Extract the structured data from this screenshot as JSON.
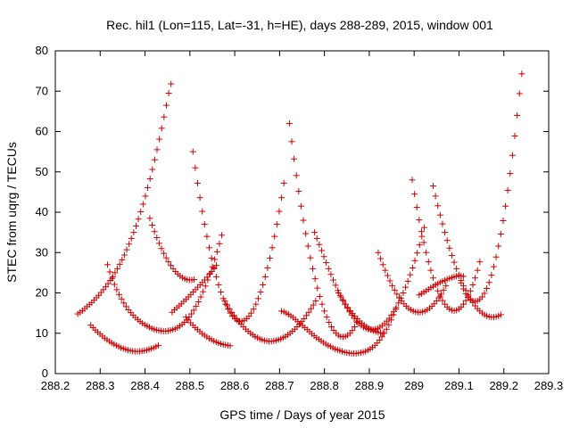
{
  "chart_data": {
    "type": "scatter",
    "title": "Rec. hil1 (Lon=115, Lat=-31, h=HE), days 288-289, 2015, window 001",
    "xlabel": "GPS time / Days of year 2015",
    "ylabel": "STEC from uqrg / TECUs",
    "xlim": [
      288.2,
      289.3
    ],
    "ylim": [
      0,
      80
    ],
    "x_ticks": [
      "288.2",
      "288.3",
      "288.4",
      "288.5",
      "288.6",
      "288.7",
      "288.8",
      "288.9",
      "289",
      "289.1",
      "289.2",
      "289.3"
    ],
    "y_ticks": [
      "0",
      "10",
      "20",
      "30",
      "40",
      "50",
      "60",
      "70",
      "80"
    ],
    "marker": "+",
    "color": "#cc0000",
    "grid": false,
    "legend": "none",
    "x_range": [
      288.25,
      289.24
    ],
    "x_step": 0.0052,
    "series": [
      {
        "values": [
          [
            14.8,
            15.2,
            15.6,
            16.1,
            16.6,
            17.1,
            17.6,
            18.2,
            18.8,
            19.4,
            20.1,
            20.8,
            21.5,
            22.3,
            23.1,
            24.0,
            25.0,
            26.0,
            27.1,
            28.2,
            29.4,
            30.7,
            32.1,
            33.5,
            35.0,
            36.6,
            38.3,
            40.1,
            42.0,
            44.0,
            46.1,
            48.3,
            50.6,
            53.0,
            55.5,
            58.1,
            60.8,
            63.6,
            66.5,
            69.5,
            71.8
          ],
          [
            15.5,
            15.3,
            15.0,
            14.7,
            14.3,
            13.9,
            13.4,
            12.9,
            12.4,
            11.9,
            11.4,
            10.9,
            10.4,
            9.9,
            9.4,
            8.9,
            8.5,
            8.1,
            7.7,
            7.3,
            7.0,
            6.7,
            6.4,
            6.1,
            5.9,
            5.7,
            5.5,
            5.3,
            5.2,
            5.1,
            5.0,
            5.0,
            5.0,
            5.1,
            5.2,
            5.3,
            5.5,
            5.8,
            6.1,
            6.5,
            7.0,
            7.6,
            8.3,
            9.1,
            10.0,
            11.0,
            12.1,
            13.3,
            14.6,
            16.0
          ],
          [
            15.2,
            15.8,
            16.3,
            16.8,
            17.3,
            17.9,
            18.4,
            19.0,
            19.6,
            20.2,
            20.8,
            21.4,
            22.0,
            22.6,
            23.2,
            23.9,
            24.6,
            25.3,
            26.0,
            26.8
          ],
          [
            19.5,
            19.8,
            20.2,
            20.5,
            20.9,
            21.3,
            21.6,
            22.0,
            22.3,
            22.6,
            22.9,
            23.1,
            23.4,
            23.6,
            23.8,
            24.0,
            24.1,
            24.2,
            24.2,
            24.1
          ],
          [
            22.5,
            21.0,
            19.8,
            18.9,
            18.3,
            18.0,
            17.9,
            18.0,
            18.4,
            19.0,
            19.9,
            21.1,
            22.6,
            24.4,
            26.5,
            28.9,
            31.6,
            34.6,
            37.9,
            41.5,
            45.4,
            49.6,
            54.1,
            58.9,
            64.0,
            69.4,
            74.3
          ],
          [
            27.0,
            25.2,
            23.6,
            22.1,
            20.8,
            19.6,
            18.5,
            17.5,
            16.6,
            15.8,
            15.1,
            14.5,
            13.9,
            13.4,
            12.9,
            12.5,
            12.1,
            11.8,
            11.5,
            11.2,
            11.0,
            10.8,
            10.7,
            10.6,
            10.5,
            10.5,
            10.6,
            10.7,
            10.9,
            11.1,
            11.4,
            11.8,
            12.2,
            12.7,
            13.3,
            14.0,
            14.8,
            15.7,
            16.7,
            17.8,
            19.0,
            20.3,
            21.7,
            23.2,
            24.8,
            26.5,
            28.3,
            30.2,
            32.2,
            34.3
          ],
          [
            35.0,
            33.5,
            32.0,
            30.5,
            29.0,
            27.5,
            26.0,
            24.6,
            23.2,
            21.9,
            20.6,
            19.4,
            18.3,
            17.2,
            16.2,
            15.3,
            14.5,
            13.7,
            13.0,
            12.4,
            11.9,
            11.5,
            11.2,
            11.0,
            10.9,
            10.9,
            11.0,
            11.2,
            11.5,
            11.9,
            12.4,
            13.0,
            13.7,
            14.5,
            15.4,
            16.4,
            17.5,
            18.7,
            20.0,
            21.4,
            22.9,
            24.5,
            26.2,
            28.0,
            29.9,
            31.9,
            34.0,
            36.2
          ],
          [
            55.0,
            51.0,
            47.2,
            43.6,
            40.2,
            37.0,
            34.0,
            31.2,
            28.6,
            26.2,
            24.0,
            22.0,
            20.2,
            18.6,
            17.2,
            16.0,
            15.0,
            14.2,
            13.6,
            13.2,
            13.0,
            13.0,
            13.2,
            13.6,
            14.2,
            15.0,
            16.0,
            17.2,
            18.6,
            20.2,
            22.0,
            24.0,
            26.2,
            28.6,
            31.2,
            34.0,
            37.0,
            40.2,
            43.6,
            47.2
          ],
          [
            46.5,
            44.0,
            41.6,
            39.3,
            37.1,
            35.0,
            33.0,
            31.1,
            29.3,
            27.6,
            26.0,
            24.5,
            23.1,
            21.8,
            20.6,
            19.5,
            18.5,
            17.6,
            16.8,
            16.1,
            15.5,
            15.0,
            14.6,
            14.3,
            14.1,
            14.0,
            14.0,
            14.1,
            14.3,
            14.6
          ],
          [
            62.0,
            57.5,
            53.2,
            49.1,
            45.2,
            41.5,
            38.0,
            34.7,
            31.6,
            28.7,
            26.0,
            23.5,
            21.2,
            19.1,
            17.2,
            15.5,
            14.0,
            12.7,
            11.6,
            10.7,
            10.0,
            9.5,
            9.2,
            9.1,
            9.2,
            9.5,
            10.0,
            10.7,
            11.6,
            12.7
          ],
          [
            38.5,
            36.8,
            35.2,
            33.7,
            32.3,
            31.0,
            29.8,
            28.7,
            27.7,
            26.8,
            26.0,
            25.3,
            24.7,
            24.2,
            23.8,
            23.5,
            23.3,
            23.2,
            23.2,
            23.3
          ],
          [
            30.0,
            28.5,
            27.0,
            25.6,
            24.3,
            23.0,
            21.8,
            20.7,
            19.7,
            18.8,
            18.0,
            17.3,
            16.7,
            16.2,
            15.8,
            15.5,
            15.3,
            15.2,
            15.2,
            15.3,
            15.5,
            15.8,
            16.2,
            16.7,
            17.3,
            18.0,
            18.8,
            19.7,
            20.7,
            21.8
          ],
          [
            18.0,
            17.0,
            16.1,
            15.2,
            14.4,
            13.6,
            12.9,
            12.2,
            11.6,
            11.0,
            10.5,
            10.0,
            9.6,
            9.2,
            8.9,
            8.6,
            8.4,
            8.2,
            8.1,
            8.0,
            8.0,
            8.1,
            8.2,
            8.4,
            8.6,
            8.9,
            9.2,
            9.6,
            10.0,
            10.5,
            11.0,
            11.6,
            12.2,
            12.9,
            13.6,
            14.4,
            15.2,
            16.1,
            17.0,
            18.0
          ],
          [
            12.0,
            11.4,
            10.8,
            10.3,
            9.8,
            9.3,
            8.8,
            8.4,
            8.0,
            7.6,
            7.3,
            7.0,
            6.7,
            6.4,
            6.2,
            6.0,
            5.8,
            5.7,
            5.6,
            5.5,
            5.5,
            5.5,
            5.6,
            5.7,
            5.8,
            6.0,
            6.2,
            6.4,
            6.7,
            7.0
          ],
          [
            20.0,
            19.0,
            18.1,
            17.2,
            16.4,
            15.6,
            14.9,
            14.2,
            13.6,
            13.0,
            12.5,
            12.0,
            11.6,
            11.2,
            10.9,
            10.6,
            10.4,
            10.2,
            10.1,
            10.0
          ],
          [
            14.0,
            13.3,
            12.6,
            12.0,
            11.4,
            10.9,
            10.4,
            9.9,
            9.5,
            9.1,
            8.7,
            8.4,
            8.1,
            7.8,
            7.6,
            7.4,
            7.2,
            7.1,
            7.0,
            6.9
          ],
          [
            48.0,
            44.5,
            41.2,
            38.1,
            35.2,
            32.5,
            30.0,
            27.7,
            25.6,
            23.7,
            22.0,
            20.5,
            19.2,
            18.1,
            17.2,
            16.5,
            16.0,
            15.7,
            15.6,
            15.7,
            16.0,
            16.5,
            17.2,
            18.1,
            19.2,
            20.5,
            22.0,
            23.7,
            25.6,
            27.7
          ]
        ]
      }
    ]
  }
}
